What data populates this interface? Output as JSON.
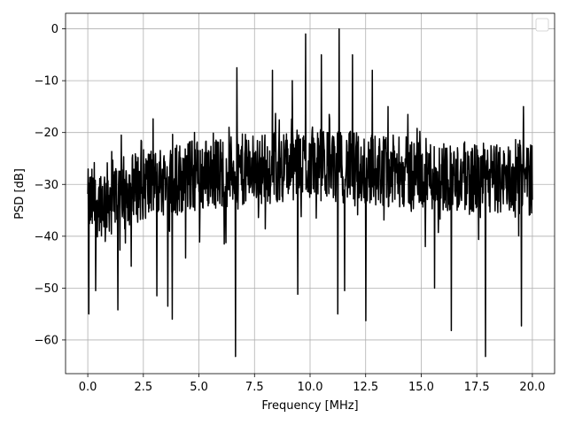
{
  "chart_data": {
    "type": "line",
    "title": "",
    "xlabel": "Frequency [MHz]",
    "ylabel": "PSD [dB]",
    "xlim": [
      -1.0,
      21.0
    ],
    "ylim": [
      -66.5,
      3.0
    ],
    "xticks": [
      0.0,
      2.5,
      5.0,
      7.5,
      10.0,
      12.5,
      15.0,
      17.5,
      20.0
    ],
    "xtick_labels": [
      "0.0",
      "2.5",
      "5.0",
      "7.5",
      "10.0",
      "12.5",
      "15.0",
      "17.5",
      "20.0"
    ],
    "yticks": [
      0,
      -10,
      -20,
      -30,
      -40,
      -50,
      -60
    ],
    "ytick_labels": [
      "0",
      "−10",
      "−20",
      "−30",
      "−40",
      "−50",
      "−60"
    ],
    "grid": true,
    "legend": {
      "placement": "upper-right",
      "entries": []
    },
    "line_color": "#000000",
    "series": [
      {
        "description": "noisy PSD trace; dense random fluctuation around a slowly varying mean with labeled extrema below",
        "x_range": [
          0.0,
          20.0
        ],
        "mean_curve": [
          [
            0.0,
            -34
          ],
          [
            2.5,
            -30
          ],
          [
            5.0,
            -28
          ],
          [
            7.5,
            -27
          ],
          [
            10.0,
            -26
          ],
          [
            12.5,
            -27
          ],
          [
            15.0,
            -28
          ],
          [
            17.5,
            -29
          ],
          [
            20.0,
            -29
          ]
        ],
        "spread_db": 7,
        "peaks": [
          [
            6.7,
            -7.5
          ],
          [
            8.3,
            -8.0
          ],
          [
            9.8,
            -1.0
          ],
          [
            10.5,
            -5.0
          ],
          [
            11.3,
            0.0
          ],
          [
            11.9,
            -5.0
          ],
          [
            9.2,
            -10.0
          ],
          [
            12.8,
            -8.0
          ],
          [
            13.5,
            -15.0
          ],
          [
            14.4,
            -16.5
          ],
          [
            19.6,
            -15.0
          ],
          [
            1.5,
            -20.5
          ],
          [
            2.4,
            -21.5
          ]
        ],
        "troughs": [
          [
            0.05,
            -55.0
          ],
          [
            0.35,
            -50.5
          ],
          [
            1.35,
            -54.2
          ],
          [
            3.1,
            -51.5
          ],
          [
            3.6,
            -53.5
          ],
          [
            3.8,
            -56.0
          ],
          [
            6.65,
            -63.2
          ],
          [
            9.45,
            -51.2
          ],
          [
            11.25,
            -55.0
          ],
          [
            11.55,
            -50.5
          ],
          [
            12.5,
            -56.3
          ],
          [
            15.6,
            -50.0
          ],
          [
            16.35,
            -58.2
          ],
          [
            17.9,
            -63.2
          ],
          [
            19.5,
            -57.3
          ]
        ]
      }
    ]
  }
}
